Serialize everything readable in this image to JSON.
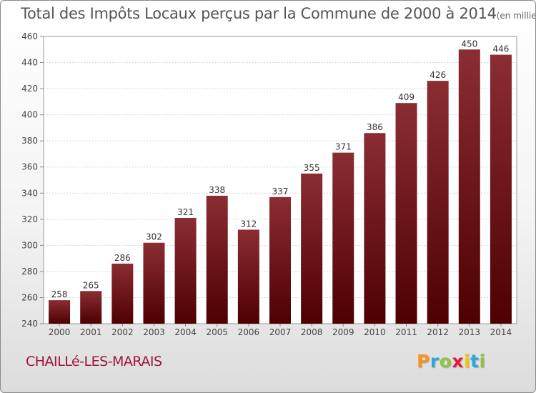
{
  "title": "Total des Impôts Locaux perçus par la Commune de 2000 à 2014",
  "title_unit": "(en milliers d'€)",
  "commune": "CHAILLé-LES-MARAIS",
  "brand": {
    "letters": [
      "P",
      "r",
      "o",
      "x",
      "i",
      "t",
      "i"
    ],
    "colors": [
      "#f7931e",
      "#29a9e0",
      "#8dc63f",
      "#e8173d",
      "#f7c600",
      "#29a9e0",
      "#8dc63f"
    ]
  },
  "chart_data": {
    "type": "bar",
    "title": "Total des Impôts Locaux perçus par la Commune de 2000 à 2014",
    "xlabel": "",
    "ylabel": "",
    "categories": [
      "2000",
      "2001",
      "2002",
      "2003",
      "2004",
      "2005",
      "2006",
      "2007",
      "2008",
      "2009",
      "2010",
      "2011",
      "2012",
      "2013",
      "2014"
    ],
    "values": [
      258,
      265,
      286,
      302,
      321,
      338,
      312,
      337,
      355,
      371,
      386,
      409,
      426,
      450,
      446
    ],
    "ylim": [
      240,
      460
    ],
    "yticks": [
      240,
      260,
      280,
      300,
      320,
      340,
      360,
      380,
      400,
      420,
      440,
      460
    ],
    "grid": true,
    "bar_color_top": "#8b2d33",
    "bar_color_bottom": "#4e0000"
  }
}
